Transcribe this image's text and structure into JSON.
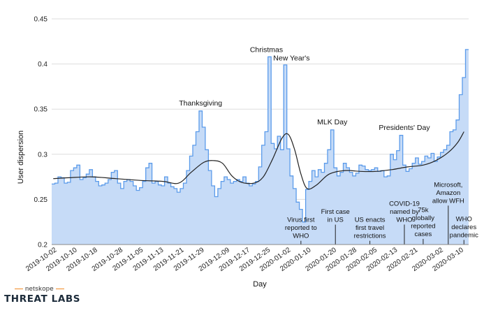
{
  "chart_data": {
    "type": "area",
    "xlabel": "Day",
    "ylabel": "User dispersion",
    "ylim": [
      0.2,
      0.45
    ],
    "y_ticks": [
      "0.2",
      "0.25",
      "0.3",
      "0.35",
      "0.4",
      "0.45"
    ],
    "x_ticks": [
      "2019-10-02",
      "2019-10-10",
      "2019-10-18",
      "2019-10-28",
      "2019-11-05",
      "2019-11-13",
      "2019-11-21",
      "2019-11-29",
      "2019-12-09",
      "2019-12-17",
      "2019-12-25",
      "2020-01-02",
      "2020-01-10",
      "2020-01-20",
      "2020-01-28",
      "2020-02-05",
      "2020-02-13",
      "2020-02-21",
      "2020-03-02",
      "2020-03-10"
    ],
    "x_start": "2019-10-01",
    "x_end": "2020-03-13",
    "grid": "horizontal",
    "colors": {
      "area_fill": "#c6dbf7",
      "area_line": "#5b9bea",
      "trend_line": "#222222",
      "grid": "#dddddd"
    },
    "series": [
      {
        "type": "step-area",
        "values": [
          0.267,
          0.268,
          0.275,
          0.274,
          0.268,
          0.269,
          0.282,
          0.285,
          0.288,
          0.272,
          0.274,
          0.278,
          0.283,
          0.275,
          0.27,
          0.265,
          0.266,
          0.268,
          0.272,
          0.28,
          0.282,
          0.268,
          0.262,
          0.27,
          0.272,
          0.27,
          0.265,
          0.26,
          0.263,
          0.27,
          0.285,
          0.29,
          0.268,
          0.27,
          0.266,
          0.265,
          0.275,
          0.268,
          0.264,
          0.262,
          0.258,
          0.262,
          0.268,
          0.282,
          0.298,
          0.31,
          0.325,
          0.348,
          0.33,
          0.305,
          0.282,
          0.265,
          0.253,
          0.262,
          0.27,
          0.275,
          0.272,
          0.268,
          0.27,
          0.272,
          0.27,
          0.275,
          0.268,
          0.265,
          0.267,
          0.27,
          0.286,
          0.31,
          0.325,
          0.408,
          0.312,
          0.306,
          0.32,
          0.305,
          0.399,
          0.306,
          0.276,
          0.262,
          0.247,
          0.239,
          0.225,
          0.261,
          0.27,
          0.282,
          0.275,
          0.283,
          0.28,
          0.29,
          0.305,
          0.327,
          0.285,
          0.276,
          0.28,
          0.29,
          0.285,
          0.28,
          0.276,
          0.279,
          0.288,
          0.287,
          0.283,
          0.282,
          0.283,
          0.285,
          0.281,
          0.282,
          0.275,
          0.276,
          0.3,
          0.294,
          0.304,
          0.321,
          0.288,
          0.281,
          0.284,
          0.29,
          0.296,
          0.289,
          0.292,
          0.298,
          0.296,
          0.301,
          0.292,
          0.297,
          0.302,
          0.305,
          0.31,
          0.325,
          0.327,
          0.338,
          0.366,
          0.385,
          0.416
        ]
      },
      {
        "type": "smooth-trend",
        "points": [
          [
            0,
            0.273
          ],
          [
            5,
            0.274
          ],
          [
            12,
            0.275
          ],
          [
            20,
            0.273
          ],
          [
            28,
            0.271
          ],
          [
            35,
            0.27
          ],
          [
            40,
            0.268
          ],
          [
            44,
            0.28
          ],
          [
            48,
            0.291
          ],
          [
            51,
            0.293
          ],
          [
            54,
            0.29
          ],
          [
            57,
            0.276
          ],
          [
            60,
            0.269
          ],
          [
            64,
            0.268
          ],
          [
            67,
            0.275
          ],
          [
            70,
            0.295
          ],
          [
            73,
            0.318
          ],
          [
            75,
            0.322
          ],
          [
            77,
            0.305
          ],
          [
            79,
            0.278
          ],
          [
            81,
            0.262
          ],
          [
            84,
            0.266
          ],
          [
            88,
            0.278
          ],
          [
            93,
            0.282
          ],
          [
            98,
            0.281
          ],
          [
            103,
            0.281
          ],
          [
            108,
            0.283
          ],
          [
            113,
            0.286
          ],
          [
            118,
            0.288
          ],
          [
            122,
            0.293
          ],
          [
            126,
            0.302
          ],
          [
            129,
            0.313
          ],
          [
            131,
            0.325
          ]
        ]
      }
    ],
    "annotations": [
      {
        "text": [
          "Thanksgiving"
        ],
        "style": "top",
        "x": 47,
        "y": 0.351
      },
      {
        "text": [
          "Christmas"
        ],
        "style": "top",
        "x": 68,
        "y": 0.41
      },
      {
        "text": [
          "New Year's"
        ],
        "style": "top",
        "x": 76,
        "y": 0.401
      },
      {
        "text": [
          "MLK Day"
        ],
        "style": "top",
        "x": 89,
        "y": 0.33
      },
      {
        "text": [
          "Presidents' Day"
        ],
        "style": "top",
        "x": 112,
        "y": 0.324
      },
      {
        "text": [
          "Virus first",
          "reported to",
          "WHO"
        ],
        "style": "event",
        "x": 79,
        "y": 0.232,
        "line_to": 0.2
      },
      {
        "text": [
          "First case",
          "in US"
        ],
        "style": "event",
        "x": 90,
        "y": 0.241,
        "line_to": 0.2
      },
      {
        "text": [
          "US enacts",
          "first travel",
          "restrictions"
        ],
        "style": "event",
        "x": 101,
        "y": 0.232,
        "line_to": 0.2
      },
      {
        "text": [
          "COVID-19",
          "named by",
          "WHO"
        ],
        "style": "event",
        "x": 112,
        "y": 0.25,
        "line_to": 0.2
      },
      {
        "text": [
          "75k",
          "globally",
          "reported",
          "cases"
        ],
        "style": "event",
        "x": 118,
        "y": 0.243,
        "line_to": 0.2
      },
      {
        "text": [
          "Microsoft,",
          "Amazon",
          "allow WFH"
        ],
        "style": "event",
        "x": 126,
        "y": 0.271,
        "line_to": 0.2
      },
      {
        "text": [
          "WHO",
          "declares",
          "pandemic"
        ],
        "style": "event",
        "x": 131,
        "y": 0.233,
        "line_to": 0.2
      }
    ]
  },
  "branding": {
    "small_text": "netskope",
    "big_text": "THREAT LABS",
    "accent_color": "#f08a24"
  }
}
